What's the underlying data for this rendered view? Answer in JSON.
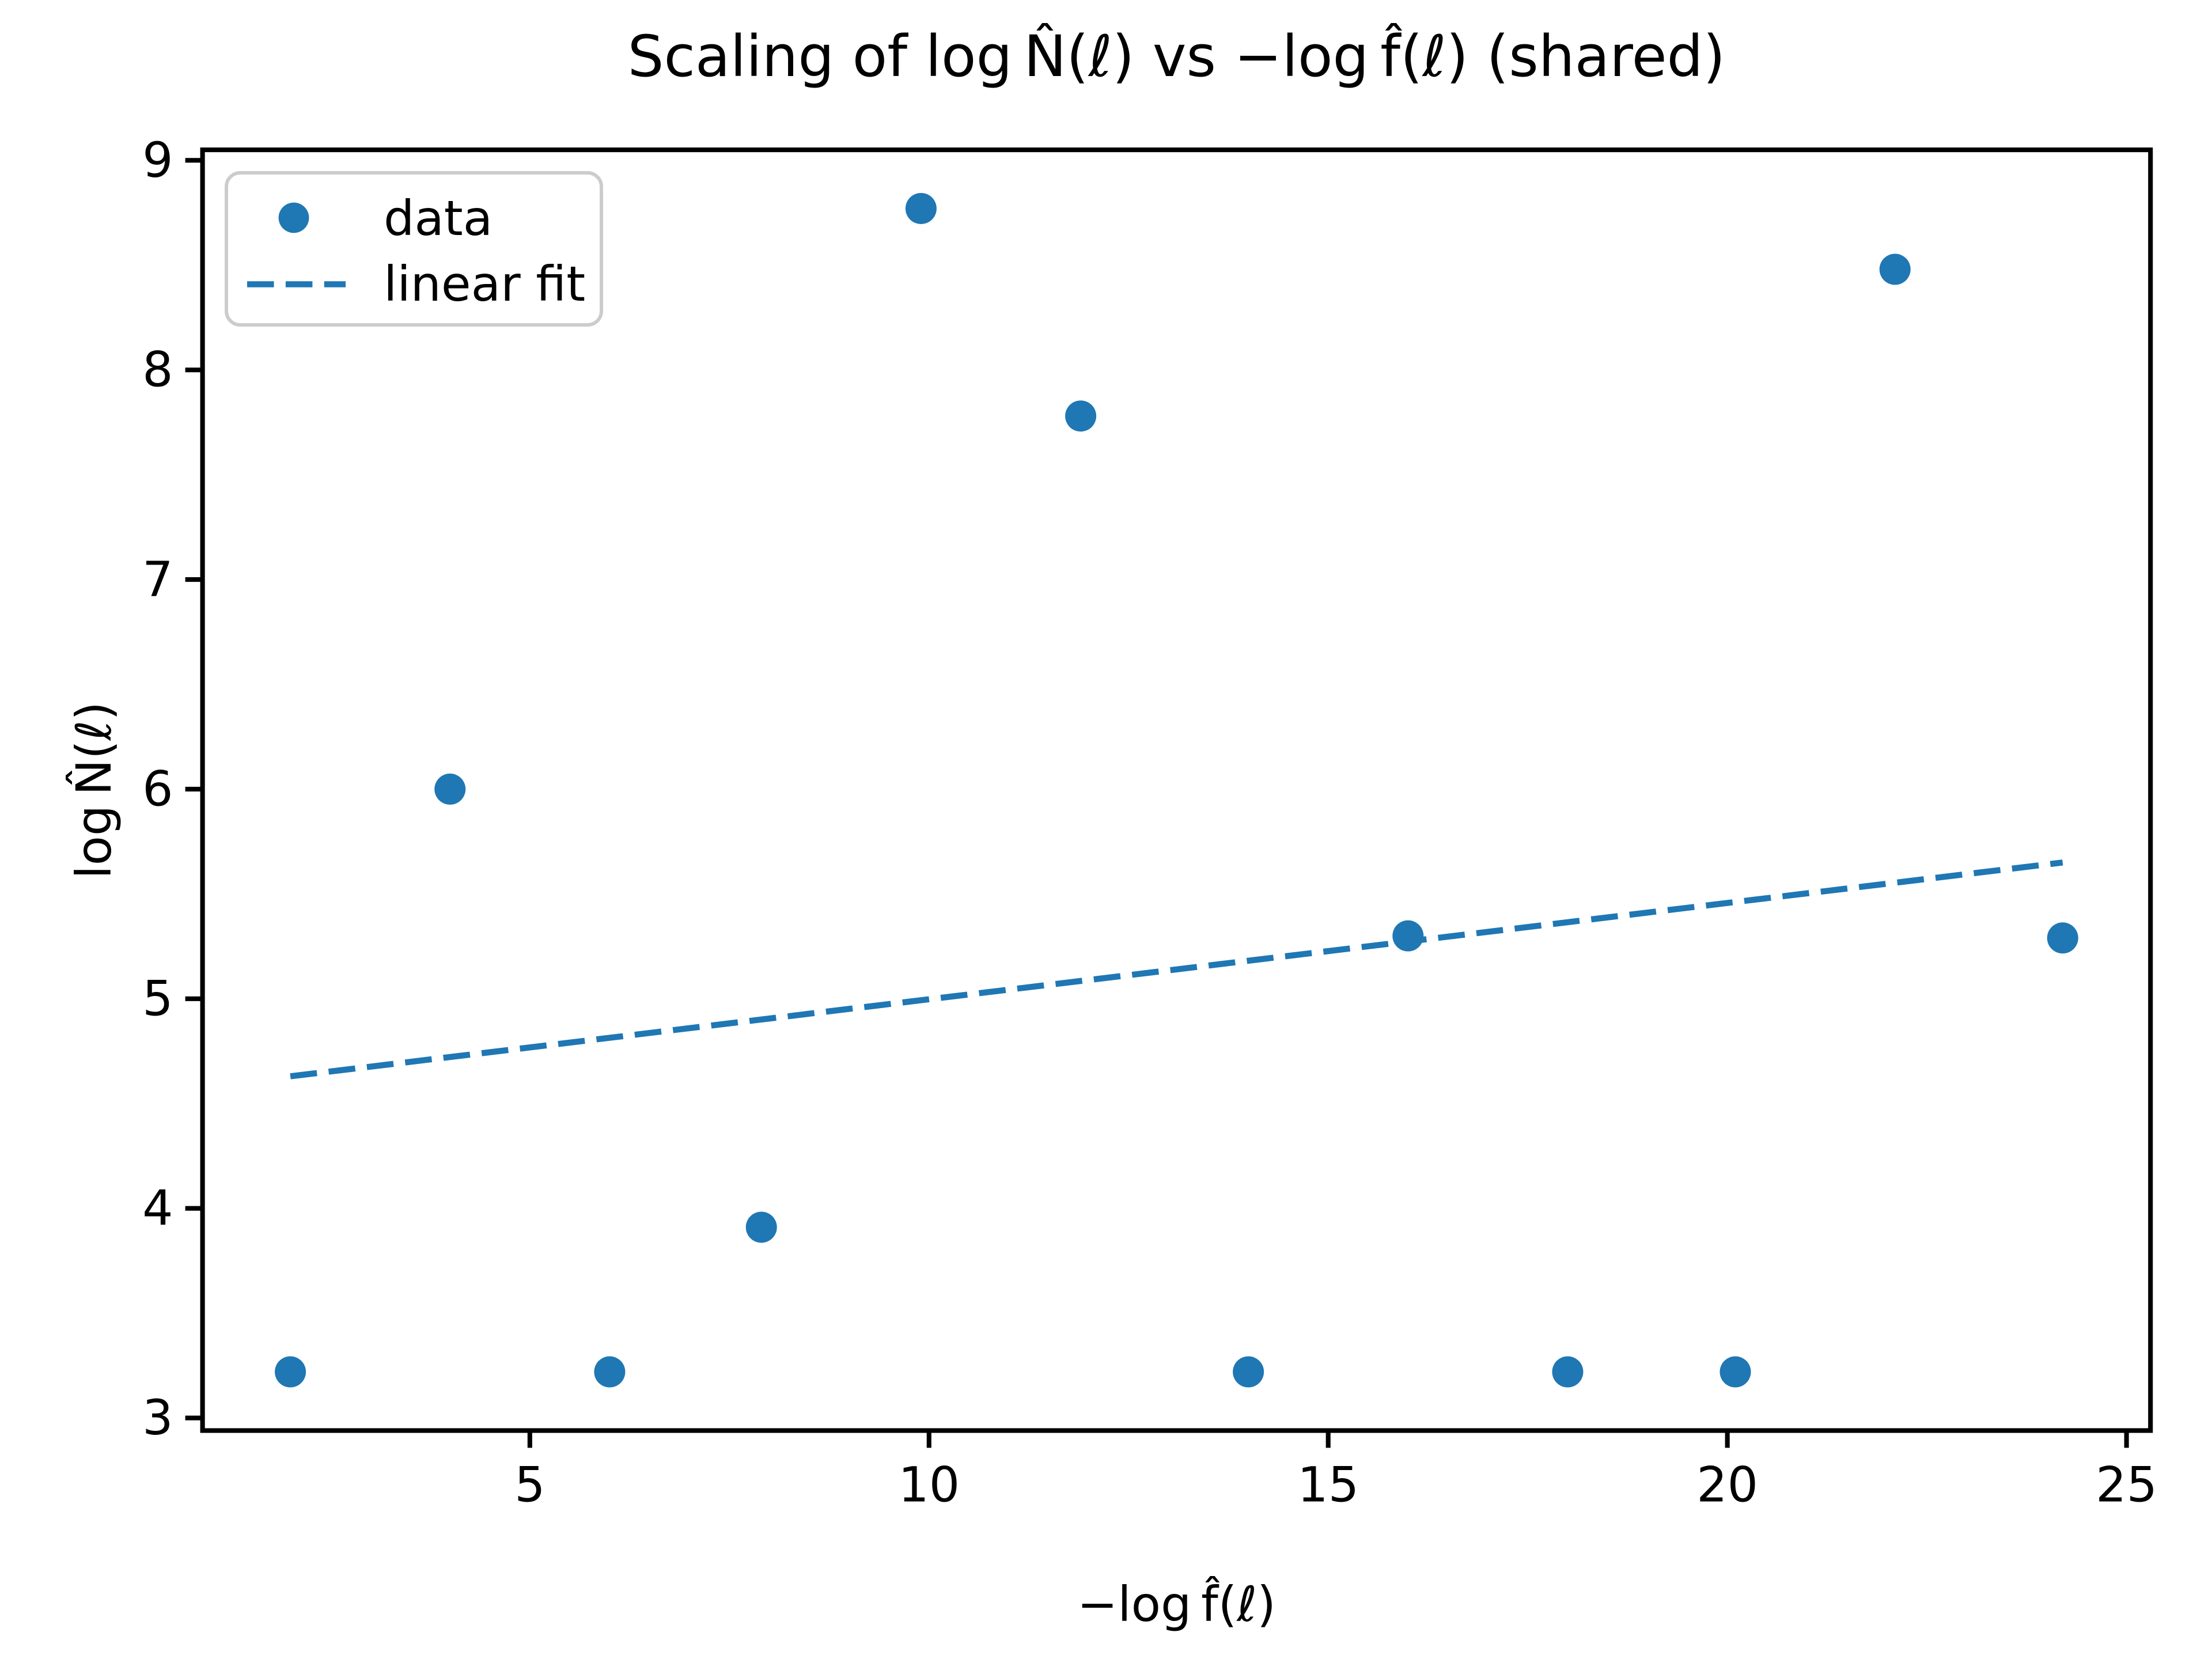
{
  "chart_data": {
    "type": "scatter",
    "title": "Scaling of log N̂(ℓ) vs −log f̂(ℓ) (shared)",
    "xlabel": "−log f̂(ℓ)",
    "ylabel": "log N̂(ℓ)",
    "x_ticks": [
      5,
      10,
      15,
      20,
      25
    ],
    "y_ticks": [
      3,
      4,
      5,
      6,
      7,
      8,
      9
    ],
    "xlim": [
      0.9,
      25.3
    ],
    "ylim": [
      2.94,
      9.05
    ],
    "grid": false,
    "legend_position": "upper-left",
    "marker_color": "#1f77b4",
    "line_color": "#1f77b4",
    "axis_color": "#000000",
    "legend_border_color": "#cccccc",
    "series": [
      {
        "name": "data",
        "kind": "scatter",
        "points_x": [
          2.0,
          4.0,
          6.0,
          7.9,
          9.9,
          11.9,
          14.0,
          16.0,
          18.0,
          20.1,
          22.1,
          24.2
        ],
        "points_y": [
          3.22,
          6.0,
          3.22,
          3.91,
          8.77,
          7.78,
          3.22,
          5.3,
          3.22,
          3.22,
          8.48,
          5.29
        ]
      },
      {
        "name": "linear fit",
        "kind": "dashed-line",
        "x_start": 2.0,
        "y_start": 4.63,
        "x_end": 24.2,
        "y_end": 5.65,
        "slope": 0.046,
        "intercept": 4.54
      }
    ]
  }
}
